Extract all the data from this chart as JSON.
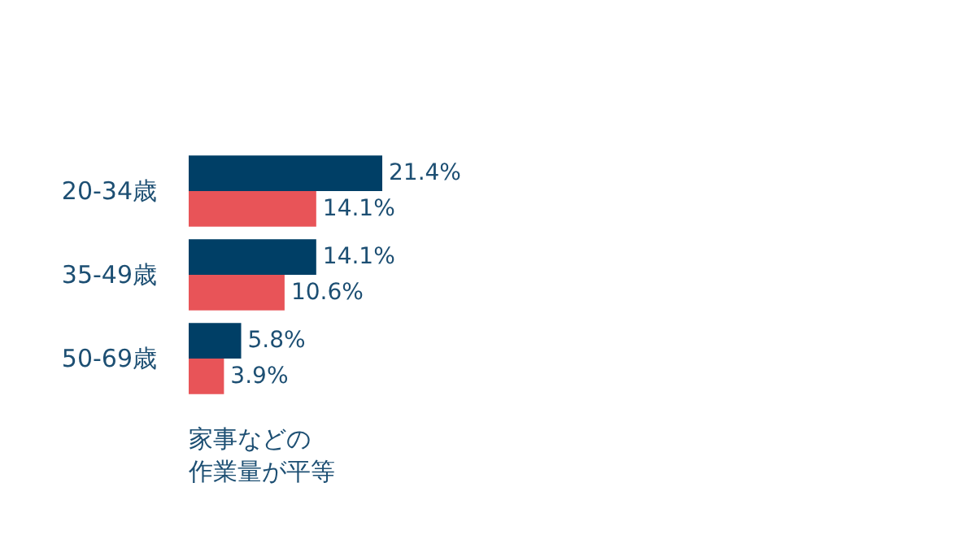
{
  "chart_data": {
    "type": "bar",
    "orientation": "horizontal",
    "categories": [
      "20-34歳",
      "35-49歳",
      "50-69歳"
    ],
    "series": [
      {
        "color": "#003f66",
        "values": [
          21.4,
          14.1,
          5.8
        ],
        "value_labels": [
          "21.4%",
          "14.1%",
          "5.8%"
        ]
      },
      {
        "color": "#e85458",
        "values": [
          14.1,
          10.6,
          3.9
        ],
        "value_labels": [
          "14.1%",
          "10.6%",
          "3.9%"
        ]
      }
    ],
    "annotations": [
      "家事などの作業量が平等"
    ]
  }
}
